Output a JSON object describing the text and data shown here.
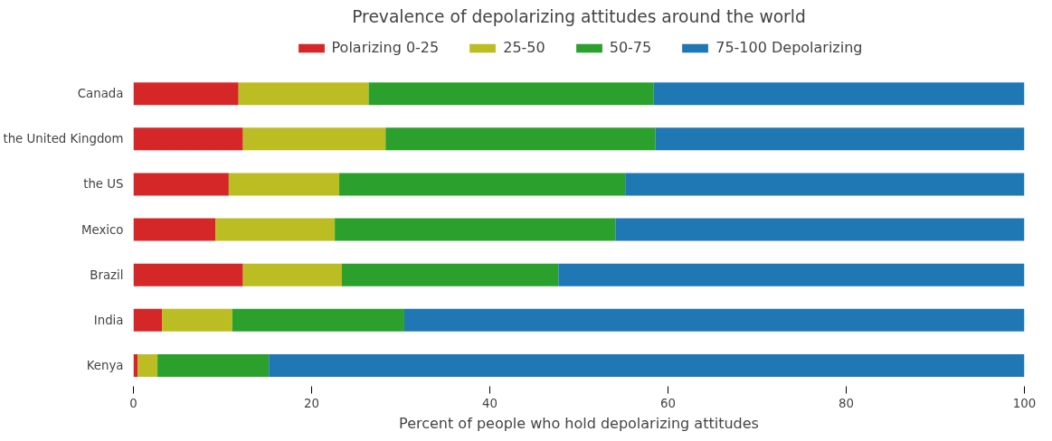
{
  "chart_data": {
    "type": "bar",
    "orientation": "horizontal",
    "stacked": true,
    "title": "Prevalence of depolarizing attitudes around the world",
    "xlabel": "Percent of people who hold depolarizing attitudes",
    "categories": [
      "Canada",
      "the United Kingdom",
      "the US",
      "Mexico",
      "Brazil",
      "India",
      "Kenya"
    ],
    "series": [
      {
        "name": "Polarizing 0-25",
        "color": "#d62728",
        "values": [
          11.8,
          12.3,
          10.7,
          9.2,
          12.3,
          3.2,
          0.5
        ]
      },
      {
        "name": "25-50",
        "color": "#bcbd22",
        "values": [
          14.6,
          16.0,
          12.4,
          13.4,
          11.1,
          7.9,
          2.2
        ]
      },
      {
        "name": "50-75",
        "color": "#2ca02c",
        "values": [
          32.0,
          30.3,
          32.1,
          31.5,
          24.3,
          19.3,
          12.5
        ]
      },
      {
        "name": "75-100 Depolarizing",
        "color": "#1f77b4",
        "values": [
          41.6,
          41.4,
          44.8,
          45.9,
          52.3,
          69.6,
          84.8
        ]
      }
    ],
    "xlim": [
      0,
      100
    ],
    "xticks": [
      0,
      20,
      40,
      60,
      80,
      100
    ],
    "grid": false,
    "legend": "top"
  }
}
